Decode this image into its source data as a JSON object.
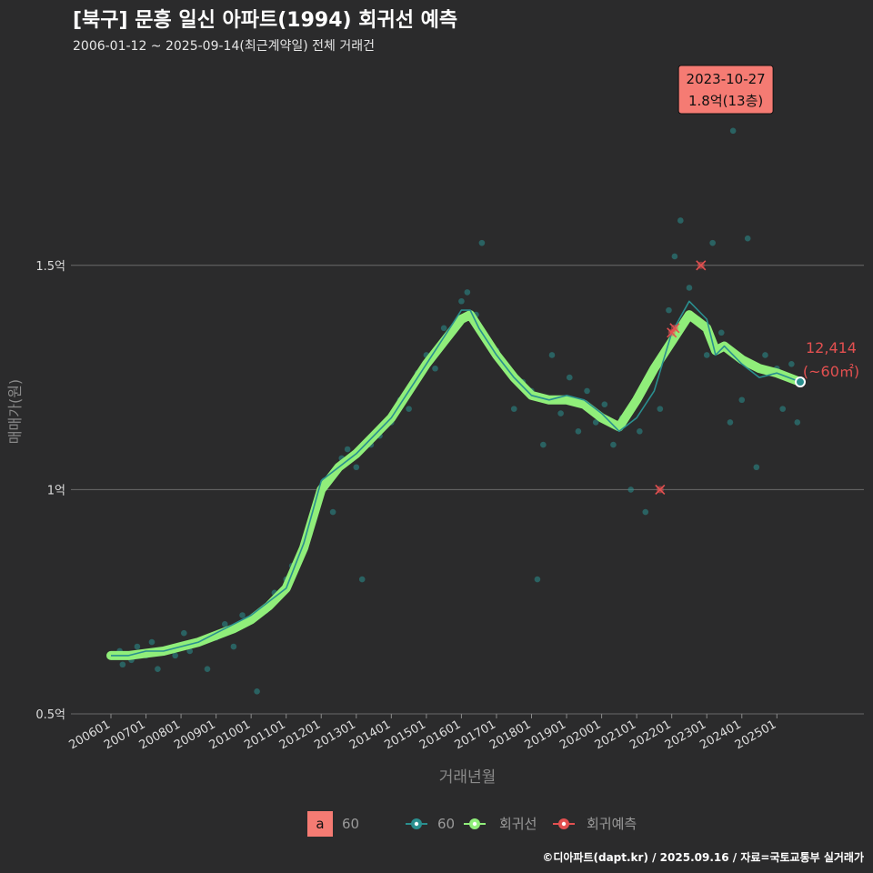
{
  "header": {
    "title": "[북구] 문흥 일신 아파트(1994) 회귀선 예측",
    "subtitle": "2006-01-12 ~ 2025-09-14(최근계약일) 전체 거래건"
  },
  "footer": {
    "credit": "©디아파트(dapt.kr) / 2025.09.16 / 자료=국토교통부 실거래가"
  },
  "colors": {
    "background": "#2b2b2c",
    "series_60": "#2a8f8f",
    "regression": "#90ee7a",
    "prediction": "#e35050",
    "annotation_fill": "#f57b73",
    "grid": "#6a6a6a"
  },
  "chart_data": {
    "type": "scatter",
    "xlabel": "거래년월",
    "ylabel": "매매가(원)",
    "ylim": [
      0.5,
      1.97
    ],
    "y_unit": "억",
    "y_ticks": [
      {
        "value": 0.5,
        "label": "0.5억"
      },
      {
        "value": 1.0,
        "label": "1억"
      },
      {
        "value": 1.5,
        "label": "1.5억"
      }
    ],
    "x_ticks": [
      "200601",
      "200701",
      "200801",
      "200901",
      "201001",
      "201101",
      "201201",
      "201301",
      "201401",
      "201501",
      "201601",
      "201701",
      "201801",
      "201901",
      "202001",
      "202101",
      "202201",
      "202301",
      "202401",
      "202501"
    ],
    "grid": true,
    "legend": {
      "placement": "bottom",
      "key_letter": "a",
      "items": [
        {
          "label": "60",
          "kind": "text-key"
        },
        {
          "label": "60",
          "kind": "series"
        },
        {
          "label": "회귀선",
          "kind": "regression"
        },
        {
          "label": "회귀예측",
          "kind": "prediction"
        }
      ]
    },
    "series": [
      {
        "name": "60",
        "kind": "moving-average",
        "points": [
          [
            "2006-01",
            0.63
          ],
          [
            "2006-07",
            0.63
          ],
          [
            "2007-01",
            0.64
          ],
          [
            "2007-07",
            0.64
          ],
          [
            "2008-01",
            0.65
          ],
          [
            "2008-07",
            0.66
          ],
          [
            "2009-01",
            0.68
          ],
          [
            "2009-07",
            0.7
          ],
          [
            "2010-01",
            0.72
          ],
          [
            "2010-07",
            0.75
          ],
          [
            "2011-01",
            0.78
          ],
          [
            "2011-07",
            0.88
          ],
          [
            "2012-01",
            1.02
          ],
          [
            "2012-07",
            1.05
          ],
          [
            "2013-01",
            1.08
          ],
          [
            "2013-07",
            1.12
          ],
          [
            "2014-01",
            1.16
          ],
          [
            "2014-07",
            1.22
          ],
          [
            "2015-01",
            1.28
          ],
          [
            "2015-07",
            1.34
          ],
          [
            "2016-01",
            1.4
          ],
          [
            "2016-04",
            1.4
          ],
          [
            "2016-07",
            1.36
          ],
          [
            "2017-01",
            1.3
          ],
          [
            "2017-07",
            1.25
          ],
          [
            "2018-01",
            1.21
          ],
          [
            "2018-07",
            1.2
          ],
          [
            "2019-01",
            1.21
          ],
          [
            "2019-07",
            1.2
          ],
          [
            "2020-01",
            1.17
          ],
          [
            "2020-07",
            1.13
          ],
          [
            "2021-01",
            1.16
          ],
          [
            "2021-07",
            1.22
          ],
          [
            "2022-01",
            1.35
          ],
          [
            "2022-07",
            1.42
          ],
          [
            "2023-01",
            1.38
          ],
          [
            "2023-04",
            1.3
          ],
          [
            "2023-07",
            1.32
          ],
          [
            "2024-01",
            1.28
          ],
          [
            "2024-07",
            1.25
          ],
          [
            "2025-01",
            1.26
          ],
          [
            "2025-09",
            1.24
          ]
        ]
      },
      {
        "name": "회귀선",
        "kind": "regression",
        "points": [
          [
            "2006-01",
            0.63
          ],
          [
            "2006-07",
            0.63
          ],
          [
            "2007-01",
            0.635
          ],
          [
            "2007-07",
            0.64
          ],
          [
            "2008-01",
            0.65
          ],
          [
            "2008-07",
            0.66
          ],
          [
            "2009-01",
            0.675
          ],
          [
            "2009-07",
            0.69
          ],
          [
            "2010-01",
            0.71
          ],
          [
            "2010-07",
            0.74
          ],
          [
            "2011-01",
            0.78
          ],
          [
            "2011-07",
            0.87
          ],
          [
            "2012-01",
            1.0
          ],
          [
            "2012-07",
            1.05
          ],
          [
            "2013-01",
            1.08
          ],
          [
            "2013-07",
            1.12
          ],
          [
            "2014-01",
            1.16
          ],
          [
            "2014-07",
            1.22
          ],
          [
            "2015-01",
            1.28
          ],
          [
            "2015-07",
            1.33
          ],
          [
            "2016-01",
            1.38
          ],
          [
            "2016-04",
            1.39
          ],
          [
            "2016-07",
            1.36
          ],
          [
            "2017-01",
            1.3
          ],
          [
            "2017-07",
            1.25
          ],
          [
            "2018-01",
            1.21
          ],
          [
            "2018-07",
            1.2
          ],
          [
            "2019-01",
            1.2
          ],
          [
            "2019-07",
            1.19
          ],
          [
            "2020-01",
            1.16
          ],
          [
            "2020-07",
            1.14
          ],
          [
            "2021-01",
            1.2
          ],
          [
            "2021-07",
            1.27
          ],
          [
            "2022-01",
            1.33
          ],
          [
            "2022-07",
            1.39
          ],
          [
            "2023-01",
            1.36
          ],
          [
            "2023-04",
            1.31
          ],
          [
            "2023-07",
            1.32
          ],
          [
            "2024-01",
            1.29
          ],
          [
            "2024-07",
            1.27
          ],
          [
            "2025-01",
            1.26
          ],
          [
            "2025-09",
            1.24
          ]
        ]
      }
    ],
    "predictions": [
      {
        "x": "2021-09",
        "y": 1.0
      },
      {
        "x": "2022-01",
        "y": 1.35
      },
      {
        "x": "2022-02",
        "y": 1.36
      },
      {
        "x": "2022-11",
        "y": 1.5
      }
    ],
    "scatter_points": [
      [
        "2006-02",
        0.63
      ],
      [
        "2006-04",
        0.64
      ],
      [
        "2006-05",
        0.61
      ],
      [
        "2006-08",
        0.62
      ],
      [
        "2006-10",
        0.65
      ],
      [
        "2007-01",
        0.63
      ],
      [
        "2007-03",
        0.66
      ],
      [
        "2007-05",
        0.6
      ],
      [
        "2007-08",
        0.64
      ],
      [
        "2007-11",
        0.63
      ],
      [
        "2008-02",
        0.68
      ],
      [
        "2008-04",
        0.64
      ],
      [
        "2008-07",
        0.66
      ],
      [
        "2008-10",
        0.6
      ],
      [
        "2009-01",
        0.67
      ],
      [
        "2009-04",
        0.7
      ],
      [
        "2009-07",
        0.65
      ],
      [
        "2009-10",
        0.72
      ],
      [
        "2010-01",
        0.71
      ],
      [
        "2010-03",
        0.55
      ],
      [
        "2010-06",
        0.73
      ],
      [
        "2010-09",
        0.77
      ],
      [
        "2011-01",
        0.8
      ],
      [
        "2011-03",
        0.83
      ],
      [
        "2011-06",
        0.85
      ],
      [
        "2011-09",
        0.9
      ],
      [
        "2011-12",
        0.98
      ],
      [
        "2012-02",
        1.02
      ],
      [
        "2012-05",
        0.95
      ],
      [
        "2012-08",
        1.07
      ],
      [
        "2012-10",
        1.09
      ],
      [
        "2013-01",
        1.05
      ],
      [
        "2013-03",
        0.8
      ],
      [
        "2013-06",
        1.1
      ],
      [
        "2013-09",
        1.12
      ],
      [
        "2014-01",
        1.15
      ],
      [
        "2014-04",
        1.2
      ],
      [
        "2014-07",
        1.18
      ],
      [
        "2014-10",
        1.26
      ],
      [
        "2015-01",
        1.3
      ],
      [
        "2015-04",
        1.27
      ],
      [
        "2015-07",
        1.36
      ],
      [
        "2015-10",
        1.35
      ],
      [
        "2016-01",
        1.42
      ],
      [
        "2016-03",
        1.44
      ],
      [
        "2016-06",
        1.39
      ],
      [
        "2016-08",
        1.55
      ],
      [
        "2016-10",
        1.33
      ],
      [
        "2017-01",
        1.31
      ],
      [
        "2017-04",
        1.28
      ],
      [
        "2017-07",
        1.18
      ],
      [
        "2017-10",
        1.24
      ],
      [
        "2018-01",
        1.22
      ],
      [
        "2018-03",
        0.8
      ],
      [
        "2018-05",
        1.1
      ],
      [
        "2018-08",
        1.3
      ],
      [
        "2018-11",
        1.17
      ],
      [
        "2019-02",
        1.25
      ],
      [
        "2019-05",
        1.13
      ],
      [
        "2019-08",
        1.22
      ],
      [
        "2019-11",
        1.15
      ],
      [
        "2020-02",
        1.19
      ],
      [
        "2020-05",
        1.1
      ],
      [
        "2020-08",
        1.16
      ],
      [
        "2020-11",
        1.0
      ],
      [
        "2021-02",
        1.13
      ],
      [
        "2021-04",
        0.95
      ],
      [
        "2021-06",
        1.25
      ],
      [
        "2021-09",
        1.18
      ],
      [
        "2021-12",
        1.4
      ],
      [
        "2022-02",
        1.52
      ],
      [
        "2022-04",
        1.6
      ],
      [
        "2022-07",
        1.45
      ],
      [
        "2022-10",
        1.38
      ],
      [
        "2023-01",
        1.3
      ],
      [
        "2023-03",
        1.55
      ],
      [
        "2023-06",
        1.35
      ],
      [
        "2023-09",
        1.15
      ],
      [
        "2023-10",
        1.8
      ],
      [
        "2024-01",
        1.2
      ],
      [
        "2024-03",
        1.56
      ],
      [
        "2024-06",
        1.05
      ],
      [
        "2024-09",
        1.3
      ],
      [
        "2025-01",
        1.27
      ],
      [
        "2025-03",
        1.18
      ],
      [
        "2025-06",
        1.28
      ],
      [
        "2025-08",
        1.15
      ]
    ],
    "annotations": [
      {
        "kind": "callout",
        "date": "2023-10-27",
        "text": "1.8억(13층)",
        "x": "2023-10",
        "y": 1.8
      },
      {
        "kind": "end-label",
        "value_text": "12,414",
        "unit_text": "(~60㎡)",
        "x": "2025-09",
        "y": 1.24
      }
    ]
  }
}
